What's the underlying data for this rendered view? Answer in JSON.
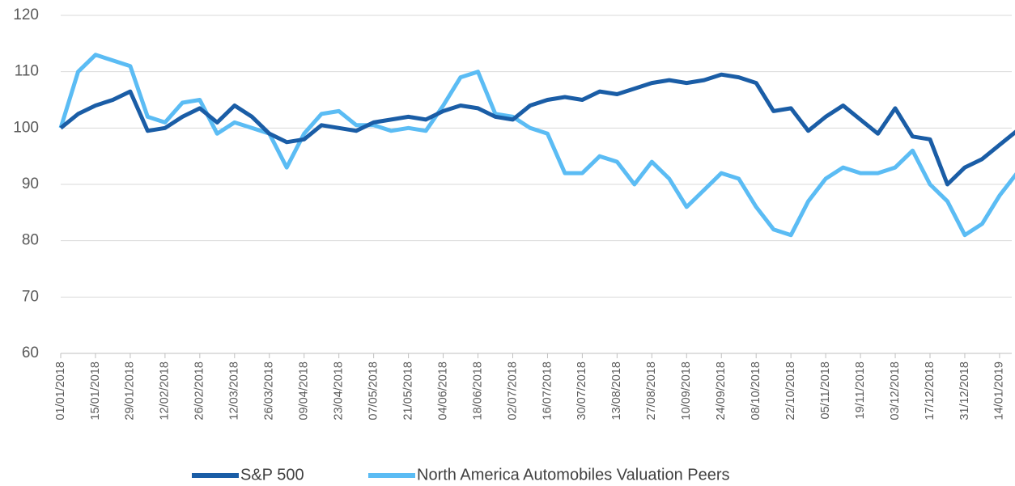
{
  "chart_data": {
    "type": "line",
    "categories": [
      "01/01/2018",
      null,
      "15/01/2018",
      null,
      "29/01/2018",
      null,
      "12/02/2018",
      null,
      "26/02/2018",
      null,
      "12/03/2018",
      null,
      "26/03/2018",
      null,
      "09/04/2018",
      null,
      "23/04/2018",
      null,
      "07/05/2018",
      null,
      "21/05/2018",
      null,
      "04/06/2018",
      null,
      "18/06/2018",
      null,
      "02/07/2018",
      null,
      "16/07/2018",
      null,
      "30/07/2018",
      null,
      "13/08/2018",
      null,
      "27/08/2018",
      null,
      "10/09/2018",
      null,
      "24/09/2018",
      null,
      "08/10/2018",
      null,
      "22/10/2018",
      null,
      "05/11/2018",
      null,
      "19/11/2018",
      null,
      "03/12/2018",
      null,
      "17/12/2018",
      null,
      "31/12/2018",
      null,
      "14/01/2019",
      null
    ],
    "series": [
      {
        "name": "S&P 500",
        "color": "#1a5da6",
        "values": [
          100,
          102.5,
          104,
          105,
          106.5,
          99.5,
          100,
          102,
          103.5,
          101,
          104,
          102,
          99,
          97.5,
          98,
          100.5,
          100,
          99.5,
          101,
          101.5,
          102,
          101.5,
          103,
          104,
          103.5,
          102,
          101.5,
          104,
          105,
          105.5,
          105,
          106.5,
          106,
          107,
          108,
          108.5,
          108,
          108.5,
          109.5,
          109,
          108,
          103,
          103.5,
          99.5,
          102,
          104,
          101.5,
          99,
          103.5,
          98.5,
          98,
          90,
          93,
          94.5,
          97,
          99.5
        ]
      },
      {
        "name": "North America Automobiles Valuation Peers",
        "color": "#5bbcf4",
        "values": [
          100,
          110,
          113,
          112,
          111,
          102,
          101,
          104.5,
          105,
          99,
          101,
          100,
          99,
          93,
          99,
          102.5,
          103,
          100.5,
          100.5,
          99.5,
          100,
          99.5,
          104,
          109,
          110,
          102.5,
          102,
          100,
          99,
          92,
          92,
          95,
          94,
          90,
          94,
          91,
          86,
          89,
          92,
          91,
          86,
          82,
          81,
          87,
          91,
          93,
          92,
          92,
          93,
          96,
          90,
          87,
          81,
          83,
          88,
          92
        ]
      }
    ],
    "ylim": [
      60,
      120
    ],
    "yticks": [
      60,
      70,
      80,
      90,
      100,
      110,
      120
    ],
    "grid": true,
    "legend": "bottom"
  }
}
